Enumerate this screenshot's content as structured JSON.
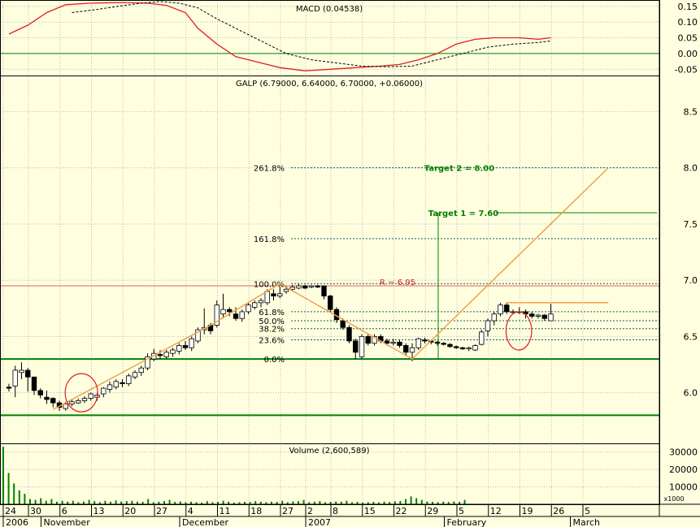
{
  "chart_data": {
    "type": "candlestick",
    "colors": {
      "background": "#ffffe0",
      "grid": "#b8b8b8",
      "support_line": "#008000",
      "resistance_line": "#e06060",
      "trend_line": "#f0a050",
      "macd_line": "#e02020",
      "signal_line": "#000000",
      "target_line": "#008000",
      "circle": "#e02020",
      "volume_bar": "#008000"
    },
    "macd_panel": {
      "title": "MACD (0.04538)",
      "ticks": [
        "0.15",
        "0.10",
        "0.05",
        "0.00",
        "-0.05"
      ],
      "range": [
        -0.07,
        0.17
      ],
      "zero_line": 0,
      "macd": [
        [
          0,
          0.062
        ],
        [
          3,
          0.09
        ],
        [
          6,
          0.13
        ],
        [
          9,
          0.155
        ],
        [
          13,
          0.16
        ],
        [
          18,
          0.162
        ],
        [
          22,
          0.16
        ],
        [
          25,
          0.153
        ],
        [
          28,
          0.13
        ],
        [
          30,
          0.08
        ],
        [
          33,
          0.03
        ],
        [
          36,
          -0.01
        ],
        [
          40,
          -0.03
        ],
        [
          43,
          -0.045
        ],
        [
          47,
          -0.055
        ],
        [
          51,
          -0.05
        ],
        [
          55,
          -0.045
        ],
        [
          59,
          -0.04
        ],
        [
          62,
          -0.035
        ],
        [
          65,
          -0.02
        ],
        [
          68,
          0.0
        ],
        [
          71,
          0.03
        ],
        [
          74,
          0.045
        ],
        [
          77,
          0.05
        ],
        [
          81,
          0.05
        ],
        [
          84,
          0.045
        ],
        [
          86,
          0.05
        ]
      ],
      "signal": [
        [
          10,
          0.13
        ],
        [
          14,
          0.14
        ],
        [
          18,
          0.152
        ],
        [
          21,
          0.16
        ],
        [
          24,
          0.165
        ],
        [
          27,
          0.16
        ],
        [
          30,
          0.145
        ],
        [
          33,
          0.11
        ],
        [
          36,
          0.08
        ],
        [
          40,
          0.04
        ],
        [
          44,
          0.0
        ],
        [
          48,
          -0.02
        ],
        [
          52,
          -0.03
        ],
        [
          56,
          -0.04
        ],
        [
          60,
          -0.042
        ],
        [
          64,
          -0.04
        ],
        [
          68,
          -0.02
        ],
        [
          72,
          0.0
        ],
        [
          76,
          0.02
        ],
        [
          80,
          0.03
        ],
        [
          84,
          0.035
        ],
        [
          86,
          0.04
        ]
      ]
    },
    "price_panel": {
      "title": "GALP (6.79000, 6.64000, 6.70000, +0.06000)",
      "ticks": [
        "8.5",
        "8.0",
        "7.5",
        "7.0",
        "6.5",
        "6.0"
      ],
      "range": [
        5.55,
        8.82
      ],
      "candles": [
        [
          6.05,
          6.08,
          6.01,
          6.04
        ],
        [
          6.06,
          6.24,
          5.96,
          6.2
        ],
        [
          6.18,
          6.27,
          6.12,
          6.2
        ],
        [
          6.2,
          6.22,
          6.01,
          6.14
        ],
        [
          6.14,
          6.14,
          5.98,
          6.02
        ],
        [
          6.02,
          6.04,
          5.95,
          5.98
        ],
        [
          5.96,
          6.02,
          5.9,
          5.94
        ],
        [
          5.95,
          5.96,
          5.87,
          5.91
        ],
        [
          5.91,
          5.93,
          5.84,
          5.87
        ],
        [
          5.86,
          5.92,
          5.84,
          5.9
        ],
        [
          5.9,
          5.94,
          5.88,
          5.92
        ],
        [
          5.91,
          5.95,
          5.9,
          5.93
        ],
        [
          5.93,
          5.97,
          5.91,
          5.95
        ],
        [
          5.95,
          6.0,
          5.93,
          5.99
        ],
        [
          5.96,
          6.0,
          5.93,
          5.98
        ],
        [
          5.99,
          6.05,
          5.96,
          6.04
        ],
        [
          6.03,
          6.1,
          6.0,
          6.07
        ],
        [
          6.05,
          6.12,
          6.03,
          6.1
        ],
        [
          6.09,
          6.12,
          6.05,
          6.08
        ],
        [
          6.08,
          6.17,
          6.06,
          6.15
        ],
        [
          6.14,
          6.2,
          6.12,
          6.18
        ],
        [
          6.18,
          6.24,
          6.15,
          6.22
        ],
        [
          6.22,
          6.35,
          6.2,
          6.32
        ],
        [
          6.3,
          6.39,
          6.28,
          6.35
        ],
        [
          6.34,
          6.38,
          6.3,
          6.33
        ],
        [
          6.32,
          6.38,
          6.3,
          6.36
        ],
        [
          6.35,
          6.4,
          6.32,
          6.38
        ],
        [
          6.37,
          6.44,
          6.34,
          6.42
        ],
        [
          6.42,
          6.46,
          6.38,
          6.4
        ],
        [
          6.4,
          6.5,
          6.37,
          6.48
        ],
        [
          6.46,
          6.58,
          6.44,
          6.56
        ],
        [
          6.56,
          6.75,
          6.52,
          6.58
        ],
        [
          6.6,
          6.62,
          6.52,
          6.55
        ],
        [
          6.6,
          6.82,
          6.58,
          6.78
        ],
        [
          6.7,
          6.88,
          6.66,
          6.74
        ],
        [
          6.74,
          6.76,
          6.68,
          6.72
        ],
        [
          6.7,
          6.76,
          6.64,
          6.66
        ],
        [
          6.66,
          6.74,
          6.63,
          6.72
        ],
        [
          6.72,
          6.8,
          6.7,
          6.78
        ],
        [
          6.76,
          6.82,
          6.74,
          6.8
        ],
        [
          6.8,
          6.84,
          6.76,
          6.82
        ],
        [
          6.8,
          6.92,
          6.78,
          6.9
        ],
        [
          6.88,
          6.92,
          6.82,
          6.86
        ],
        [
          6.86,
          6.94,
          6.84,
          6.88
        ],
        [
          6.9,
          6.95,
          6.88,
          6.92
        ],
        [
          6.92,
          6.96,
          6.9,
          6.94
        ],
        [
          6.93,
          6.97,
          6.92,
          6.95
        ],
        [
          6.95,
          6.96,
          6.92,
          6.93
        ],
        [
          6.94,
          6.96,
          6.93,
          6.95
        ],
        [
          6.95,
          6.96,
          6.93,
          6.94
        ],
        [
          6.95,
          6.95,
          6.83,
          6.86
        ],
        [
          6.86,
          6.87,
          6.72,
          6.74
        ],
        [
          6.74,
          6.76,
          6.62,
          6.65
        ],
        [
          6.64,
          6.66,
          6.56,
          6.58
        ],
        [
          6.58,
          6.6,
          6.44,
          6.46
        ],
        [
          6.46,
          6.48,
          6.3,
          6.36
        ],
        [
          6.32,
          6.52,
          6.3,
          6.5
        ],
        [
          6.5,
          6.52,
          6.42,
          6.44
        ],
        [
          6.44,
          6.52,
          6.42,
          6.5
        ],
        [
          6.5,
          6.52,
          6.44,
          6.46
        ],
        [
          6.46,
          6.48,
          6.42,
          6.44
        ],
        [
          6.44,
          6.48,
          6.42,
          6.45
        ],
        [
          6.45,
          6.47,
          6.4,
          6.42
        ],
        [
          6.42,
          6.44,
          6.33,
          6.36
        ],
        [
          6.36,
          6.44,
          6.28,
          6.4
        ],
        [
          6.4,
          6.49,
          6.38,
          6.48
        ],
        [
          6.47,
          6.49,
          6.44,
          6.46
        ],
        [
          6.46,
          6.47,
          6.43,
          6.45
        ],
        [
          6.45,
          6.46,
          6.42,
          6.44
        ],
        [
          6.44,
          6.45,
          6.42,
          6.43
        ],
        [
          6.43,
          6.44,
          6.4,
          6.41
        ],
        [
          6.41,
          6.42,
          6.39,
          6.4
        ],
        [
          6.4,
          6.41,
          6.38,
          6.39
        ],
        [
          6.39,
          6.41,
          6.37,
          6.4
        ],
        [
          6.38,
          6.43,
          6.37,
          6.42
        ],
        [
          6.43,
          6.56,
          6.42,
          6.54
        ],
        [
          6.55,
          6.66,
          6.5,
          6.64
        ],
        [
          6.64,
          6.72,
          6.6,
          6.7
        ],
        [
          6.7,
          6.8,
          6.68,
          6.78
        ],
        [
          6.78,
          6.8,
          6.7,
          6.72
        ],
        [
          6.72,
          6.74,
          6.7,
          6.72
        ],
        [
          6.72,
          6.76,
          6.7,
          6.72
        ],
        [
          6.72,
          6.74,
          6.66,
          6.7
        ],
        [
          6.7,
          6.72,
          6.66,
          6.68
        ],
        [
          6.68,
          6.7,
          6.66,
          6.69
        ],
        [
          6.69,
          6.7,
          6.64,
          6.66
        ],
        [
          6.64,
          6.79,
          6.64,
          6.7
        ]
      ],
      "support_lines": [
        6.3,
        5.8
      ],
      "resistance": {
        "value": 6.95,
        "label": "R = 6.95"
      },
      "fibonacci": [
        {
          "label": "261.8%",
          "value": 8.0
        },
        {
          "label": "161.8%",
          "value": 7.37
        },
        {
          "label": "100.0%",
          "value": 6.97
        },
        {
          "label": "61.8%",
          "value": 6.72
        },
        {
          "label": "50.0%",
          "value": 6.64
        },
        {
          "label": "38.2%",
          "value": 6.57
        },
        {
          "label": "23.6%",
          "value": 6.47
        },
        {
          "label": "0.0%",
          "value": 6.3
        }
      ],
      "targets": [
        {
          "label": "Target 2 =  8.00",
          "value": 8.0
        },
        {
          "label": "Target 1 =  7.60",
          "value": 7.6
        }
      ],
      "trend_lines": [
        [
          [
            7,
            5.85
          ],
          [
            32,
            6.6
          ],
          [
            43,
            6.97
          ],
          [
            64,
            6.3
          ],
          [
            91,
            8.0
          ]
        ],
        [
          [
            79,
            6.8
          ],
          [
            91,
            6.8
          ]
        ]
      ],
      "target_vertical": {
        "x": 64,
        "from": 6.3,
        "to": 7.6
      },
      "circles": [
        {
          "x": 11.5,
          "y": 6.0,
          "rx": 0.33,
          "ry": 0.17
        },
        {
          "x": 76.8,
          "y": 6.55,
          "rx": 0.26,
          "ry": 0.17
        }
      ]
    },
    "volume_panel": {
      "title": "Volume (2,600,589)",
      "ticks": [
        "30000",
        "20000",
        "10000"
      ],
      "unit_label": "x1000",
      "range": [
        0,
        35000
      ],
      "values": [
        33000,
        18000,
        12000,
        8000,
        6000,
        3000,
        2500,
        3500,
        2000,
        3000,
        1500,
        2000,
        1500,
        2000,
        1200,
        1500,
        2500,
        1800,
        1200,
        2000,
        1500,
        2200,
        1600,
        1800,
        2000,
        1500,
        1400,
        3000,
        1200,
        1500,
        1800,
        2500,
        1400,
        1600,
        1200,
        1500,
        1200,
        1000,
        1800,
        1200,
        1400,
        2000,
        1500,
        1000,
        1200,
        1400,
        1300,
        1800,
        1500,
        1200,
        1500,
        1400,
        2000,
        1200,
        1600,
        1800,
        2500,
        1200,
        1500,
        1800,
        1200,
        1400,
        1600,
        1500,
        2000,
        1200,
        1400,
        1000,
        1200,
        1400,
        1100,
        1500,
        1300,
        1700,
        1900,
        3000,
        4500,
        3500,
        2500,
        1600,
        1400,
        1200,
        1500,
        1300,
        1600,
        1400,
        2500
      ]
    },
    "x_axis": {
      "day_labels": [
        {
          "i": 0,
          "label": "24"
        },
        {
          "i": 4,
          "label": "30"
        },
        {
          "i": 9,
          "label": "6"
        },
        {
          "i": 14,
          "label": "13"
        },
        {
          "i": 19,
          "label": "20"
        },
        {
          "i": 24,
          "label": "27"
        },
        {
          "i": 29,
          "label": "4"
        },
        {
          "i": 34,
          "label": "11"
        },
        {
          "i": 39,
          "label": "18"
        },
        {
          "i": 44,
          "label": "27"
        },
        {
          "i": 48,
          "label": "2"
        },
        {
          "i": 52,
          "label": "8"
        },
        {
          "i": 57,
          "label": "15"
        },
        {
          "i": 62,
          "label": "22"
        },
        {
          "i": 67,
          "label": "29"
        },
        {
          "i": 72,
          "label": "5"
        },
        {
          "i": 77,
          "label": "12"
        },
        {
          "i": 82,
          "label": "19"
        },
        {
          "i": 87,
          "label": "26"
        },
        {
          "i": 92,
          "label": "5"
        }
      ],
      "month_labels": [
        {
          "i": 0,
          "label": "2006"
        },
        {
          "i": 6,
          "label": "November"
        },
        {
          "i": 28,
          "label": "December"
        },
        {
          "i": 48,
          "label": "2007"
        },
        {
          "i": 70,
          "label": "February"
        },
        {
          "i": 90,
          "label": "March"
        }
      ]
    }
  }
}
